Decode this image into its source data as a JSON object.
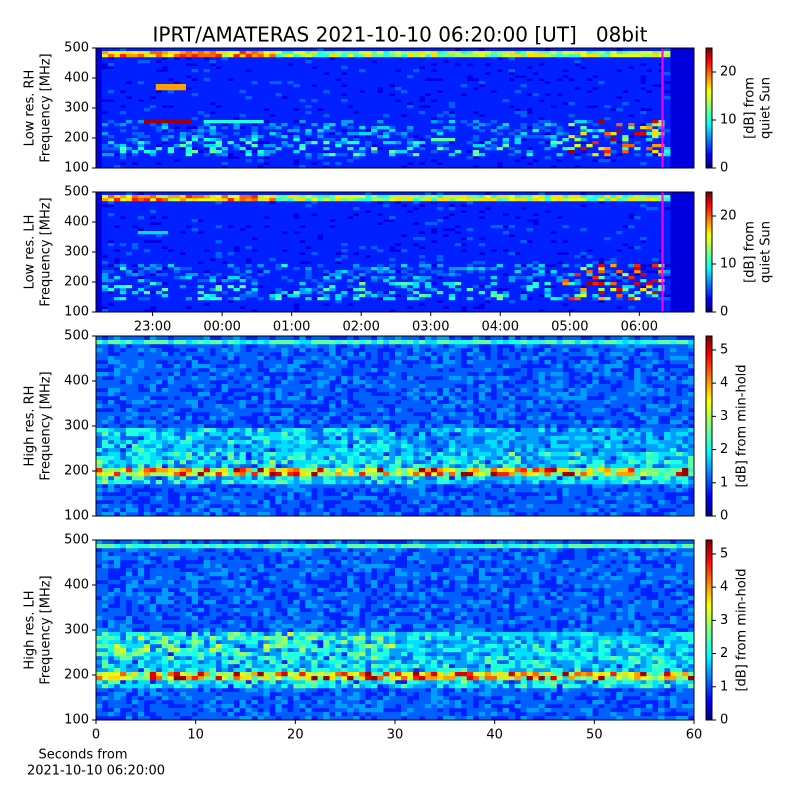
{
  "title": "IPRT/AMATERAS 2021-10-10 06:20:00 [UT]   08bit",
  "chart_data": [
    {
      "type": "heatmap",
      "ylabel": [
        "Low res. RH",
        "Frequency [MHz]"
      ],
      "xlim": [
        22.186,
        30.786
      ],
      "ylim": [
        100,
        500
      ],
      "yticks": [
        100,
        200,
        300,
        400,
        500
      ],
      "colorbar": {
        "label": [
          "[dB] from",
          "quiet Sun"
        ],
        "lim": [
          0,
          25
        ],
        "ticks": [
          0,
          10,
          20
        ]
      },
      "marker": {
        "x": 30.333,
        "color": "#ff00ff"
      }
    },
    {
      "type": "heatmap",
      "ylabel": [
        "Low res. LH",
        "Frequency [MHz]"
      ],
      "xlim": [
        22.186,
        30.786
      ],
      "ylim": [
        100,
        500
      ],
      "yticks": [
        100,
        200,
        300,
        400,
        500
      ],
      "xticks": [
        {
          "value": 23,
          "label": "23:00"
        },
        {
          "value": 24,
          "label": "00:00"
        },
        {
          "value": 25,
          "label": "01:00"
        },
        {
          "value": 26,
          "label": "02:00"
        },
        {
          "value": 27,
          "label": "03:00"
        },
        {
          "value": 28,
          "label": "04:00"
        },
        {
          "value": 29,
          "label": "05:00"
        },
        {
          "value": 30,
          "label": "06:00"
        }
      ],
      "colorbar": {
        "label": [
          "[dB] from",
          "quiet Sun"
        ],
        "lim": [
          0,
          25
        ],
        "ticks": [
          0,
          10,
          20
        ]
      },
      "marker": {
        "x": 30.333,
        "color": "#ff00ff"
      }
    },
    {
      "type": "heatmap",
      "ylabel": [
        "High res. RH",
        "Frequency [MHz]"
      ],
      "xlim": [
        0,
        60
      ],
      "ylim": [
        100,
        500
      ],
      "yticks": [
        100,
        200,
        300,
        400,
        500
      ],
      "colorbar": {
        "label": [
          "[dB] from min-hold"
        ],
        "lim": [
          0,
          5.42
        ],
        "ticks": [
          0,
          1,
          2,
          3,
          4,
          5
        ]
      }
    },
    {
      "type": "heatmap",
      "ylabel": [
        "High res. LH",
        "Frequency [MHz]"
      ],
      "xlim": [
        0,
        60
      ],
      "ylim": [
        100,
        500
      ],
      "yticks": [
        100,
        200,
        300,
        400,
        500
      ],
      "xticks": [
        0,
        10,
        20,
        30,
        40,
        50,
        60
      ],
      "xlabel": [
        "Seconds from",
        "2021-10-10 06:20:00"
      ],
      "colorbar": {
        "label": [
          "[dB] from min-hold"
        ],
        "lim": [
          0,
          5.42
        ],
        "ticks": [
          0,
          1,
          2,
          3,
          4,
          5
        ]
      }
    }
  ]
}
